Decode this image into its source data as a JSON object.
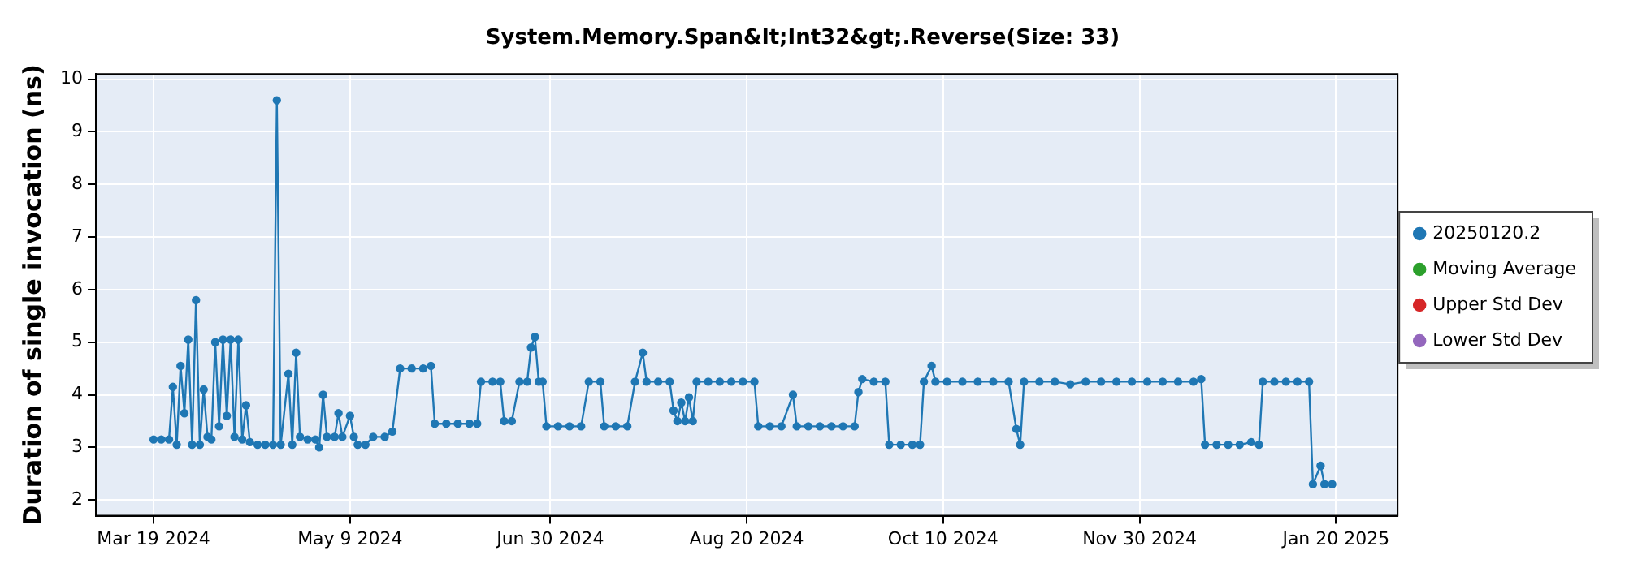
{
  "chart_data": {
    "type": "line",
    "title": "System.Memory.Span&lt;Int32&gt;.Reverse(Size: 33)",
    "ylabel": "Duration of single invocation (ns)",
    "xlim": [
      "2024-03-04",
      "2025-02-05"
    ],
    "xticks": [
      {
        "value": "2024-03-19",
        "label": "Mar 19 2024"
      },
      {
        "value": "2024-05-09",
        "label": "May 9 2024"
      },
      {
        "value": "2024-06-30",
        "label": "Jun 30 2024"
      },
      {
        "value": "2024-08-20",
        "label": "Aug 20 2024"
      },
      {
        "value": "2024-10-10",
        "label": "Oct 10 2024"
      },
      {
        "value": "2024-11-30",
        "label": "Nov 30 2024"
      },
      {
        "value": "2025-01-20",
        "label": "Jan 20 2025"
      }
    ],
    "ylim": [
      1.7,
      10.1
    ],
    "yticks": [
      2,
      3,
      4,
      5,
      6,
      7,
      8,
      9,
      10
    ],
    "grid": true,
    "legend": "right",
    "marker": "circle",
    "line_style": "solid",
    "series": [
      {
        "name": "20250120.2",
        "color": "#1f77b4",
        "x": [
          "2024-03-19",
          "2024-03-21",
          "2024-03-23",
          "2024-03-24",
          "2024-03-25",
          "2024-03-26",
          "2024-03-27",
          "2024-03-28",
          "2024-03-29",
          "2024-03-30",
          "2024-03-31",
          "2024-04-01",
          "2024-04-02",
          "2024-04-03",
          "2024-04-04",
          "2024-04-05",
          "2024-04-06",
          "2024-04-07",
          "2024-04-08",
          "2024-04-09",
          "2024-04-10",
          "2024-04-11",
          "2024-04-12",
          "2024-04-13",
          "2024-04-15",
          "2024-04-17",
          "2024-04-19",
          "2024-04-20",
          "2024-04-21",
          "2024-04-23",
          "2024-04-24",
          "2024-04-25",
          "2024-04-26",
          "2024-04-28",
          "2024-04-30",
          "2024-05-01",
          "2024-05-02",
          "2024-05-03",
          "2024-05-05",
          "2024-05-06",
          "2024-05-07",
          "2024-05-09",
          "2024-05-10",
          "2024-05-11",
          "2024-05-13",
          "2024-05-15",
          "2024-05-18",
          "2024-05-20",
          "2024-05-22",
          "2024-05-25",
          "2024-05-28",
          "2024-05-30",
          "2024-05-31",
          "2024-06-03",
          "2024-06-06",
          "2024-06-09",
          "2024-06-11",
          "2024-06-12",
          "2024-06-15",
          "2024-06-17",
          "2024-06-18",
          "2024-06-20",
          "2024-06-22",
          "2024-06-24",
          "2024-06-25",
          "2024-06-26",
          "2024-06-27",
          "2024-06-28",
          "2024-06-29",
          "2024-07-02",
          "2024-07-05",
          "2024-07-08",
          "2024-07-10",
          "2024-07-13",
          "2024-07-14",
          "2024-07-17",
          "2024-07-20",
          "2024-07-22",
          "2024-07-24",
          "2024-07-25",
          "2024-07-28",
          "2024-07-31",
          "2024-08-01",
          "2024-08-02",
          "2024-08-03",
          "2024-08-04",
          "2024-08-05",
          "2024-08-06",
          "2024-08-07",
          "2024-08-10",
          "2024-08-13",
          "2024-08-16",
          "2024-08-19",
          "2024-08-22",
          "2024-08-23",
          "2024-08-26",
          "2024-08-29",
          "2024-09-01",
          "2024-09-02",
          "2024-09-05",
          "2024-09-08",
          "2024-09-11",
          "2024-09-14",
          "2024-09-17",
          "2024-09-18",
          "2024-09-19",
          "2024-09-22",
          "2024-09-25",
          "2024-09-26",
          "2024-09-29",
          "2024-10-02",
          "2024-10-04",
          "2024-10-05",
          "2024-10-07",
          "2024-10-08",
          "2024-10-11",
          "2024-10-15",
          "2024-10-19",
          "2024-10-23",
          "2024-10-27",
          "2024-10-29",
          "2024-10-30",
          "2024-10-31",
          "2024-11-04",
          "2024-11-08",
          "2024-11-12",
          "2024-11-16",
          "2024-11-20",
          "2024-11-24",
          "2024-11-28",
          "2024-12-02",
          "2024-12-06",
          "2024-12-10",
          "2024-12-14",
          "2024-12-16",
          "2024-12-17",
          "2024-12-20",
          "2024-12-23",
          "2024-12-26",
          "2024-12-29",
          "2024-12-31",
          "2025-01-01",
          "2025-01-04",
          "2025-01-07",
          "2025-01-10",
          "2025-01-13",
          "2025-01-14",
          "2025-01-16",
          "2025-01-17",
          "2025-01-19"
        ],
        "values": [
          3.15,
          3.15,
          3.15,
          4.15,
          3.05,
          4.55,
          3.65,
          5.05,
          3.05,
          5.8,
          3.05,
          4.1,
          3.2,
          3.15,
          5.0,
          3.4,
          5.05,
          3.6,
          5.05,
          3.2,
          5.05,
          3.15,
          3.8,
          3.1,
          3.05,
          3.05,
          3.05,
          9.6,
          3.05,
          4.4,
          3.05,
          4.8,
          3.2,
          3.15,
          3.15,
          3.0,
          4.0,
          3.2,
          3.2,
          3.65,
          3.2,
          3.6,
          3.2,
          3.05,
          3.05,
          3.2,
          3.2,
          3.3,
          4.5,
          4.5,
          4.5,
          4.55,
          3.45,
          3.45,
          3.45,
          3.45,
          3.45,
          4.25,
          4.25,
          4.25,
          3.5,
          3.5,
          4.25,
          4.25,
          4.9,
          5.1,
          4.25,
          4.25,
          3.4,
          3.4,
          3.4,
          3.4,
          4.25,
          4.25,
          3.4,
          3.4,
          3.4,
          4.25,
          4.8,
          4.25,
          4.25,
          4.25,
          3.7,
          3.5,
          3.85,
          3.5,
          3.95,
          3.5,
          4.25,
          4.25,
          4.25,
          4.25,
          4.25,
          4.25,
          3.4,
          3.4,
          3.4,
          4.0,
          3.4,
          3.4,
          3.4,
          3.4,
          3.4,
          3.4,
          4.05,
          4.3,
          4.25,
          4.25,
          3.05,
          3.05,
          3.05,
          3.05,
          4.25,
          4.55,
          4.25,
          4.25,
          4.25,
          4.25,
          4.25,
          4.25,
          3.35,
          3.05,
          4.25,
          4.25,
          4.25,
          4.2,
          4.25,
          4.25,
          4.25,
          4.25,
          4.25,
          4.25,
          4.25,
          4.25,
          4.3,
          3.05,
          3.05,
          3.05,
          3.05,
          3.1,
          3.05,
          4.25,
          4.25,
          4.25,
          4.25,
          4.25,
          2.3,
          2.65,
          2.3,
          2.3
        ]
      },
      {
        "name": "Moving Average",
        "color": "#2ca02c"
      },
      {
        "name": "Upper Std Dev",
        "color": "#d62728"
      },
      {
        "name": "Lower Std Dev",
        "color": "#9467bd"
      }
    ]
  }
}
